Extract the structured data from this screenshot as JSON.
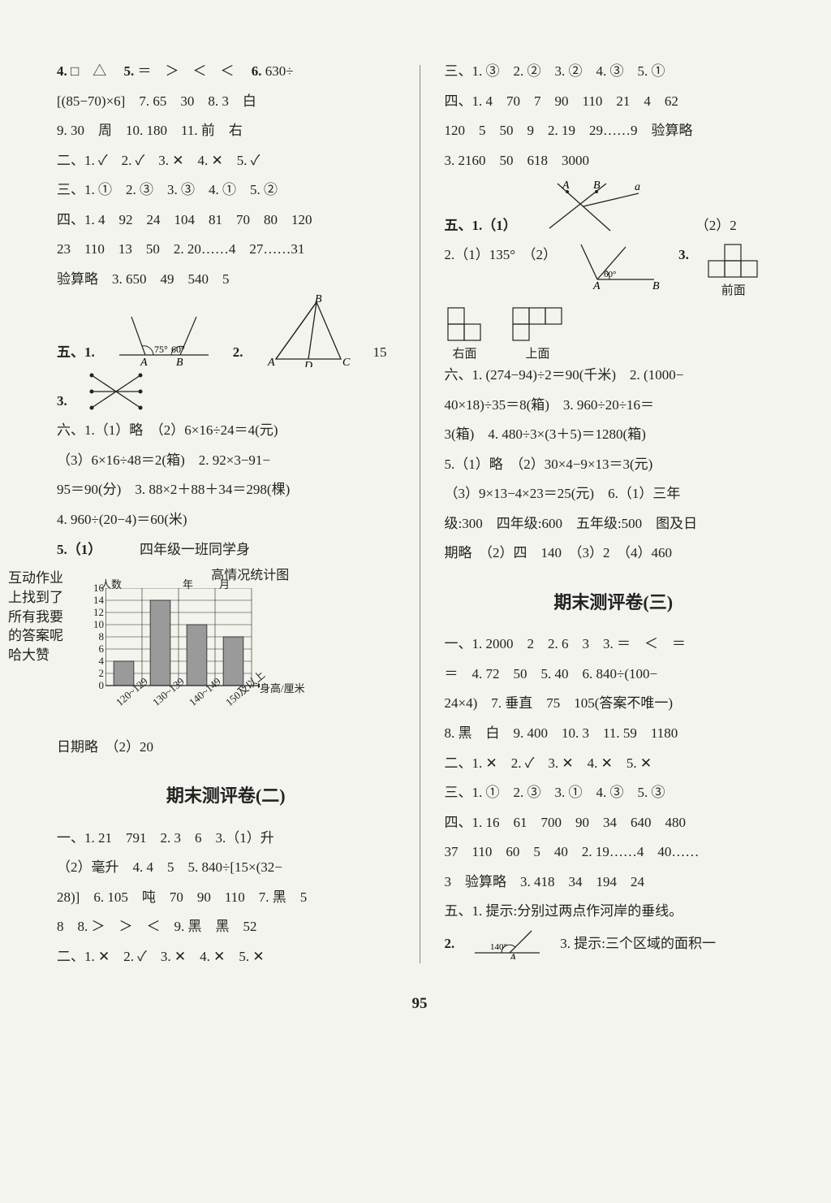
{
  "page_number": "95",
  "left": {
    "l1": {
      "a": "4.",
      "b": "□　△",
      "c": "5.",
      "d": "＝　＞　＜　＜",
      "e": "6.",
      "f": "630÷"
    },
    "l2": "[(85−70)×6]　7. 65　30　8. 3　白",
    "l3": "9. 30　周　10. 180　11. 前　右",
    "l4": "二、1. ✓　2. ✓　3. ✕　4. ✕　5. ✓",
    "l5": "三、1. ①　2. ③　3. ③　4. ①　5. ②",
    "l6": "四、1. 4　92　24　104　81　70　80　120",
    "l7": "23　110　13　50　2. 20……4　27……31",
    "l8": "验算略　3. 650　49　540　5",
    "l9a": "五、1.",
    "l9b": "2.",
    "l9c": "15",
    "fig1": {
      "angle1": "75°",
      "angle2": "60°",
      "labelA": "A",
      "labelB": "B"
    },
    "fig2": {
      "A": "A",
      "B": "B",
      "C": "C",
      "D": "D"
    },
    "l10": "3.",
    "l11": "六、1.（1）略　（2）6×16÷24＝4(元)",
    "l12": "（3）6×16÷48＝2(箱)　2. 92×3−91−",
    "l13": "95＝90(分)　3. 88×2＋88＋34＝298(棵)",
    "l14": "4. 960÷(20−4)＝60(米)",
    "l15a": "5.（1）",
    "l15b": "四年级一班同学身",
    "l15c": "高情况统计图",
    "chart": {
      "ylabel_top": "人数",
      "xlabel_right_top": "年",
      "xlabel_right_top2": "月",
      "xaxis_label": "身高/厘米",
      "yticks": [
        "16",
        "14",
        "12",
        "10",
        "8",
        "6",
        "4",
        "2",
        "0"
      ],
      "categories": [
        "120~129",
        "130~139",
        "140~149",
        "150及以上"
      ],
      "values": [
        4,
        14,
        10,
        8
      ],
      "ymax": 16,
      "bar_color": "#9a9a9a",
      "grid_color": "#222",
      "bg": "#f4f4ee"
    },
    "l16": "日期略　（2）20",
    "heading1": "期末测评卷(二)",
    "l17": "一、1. 21　791　2. 3　6　3.（1）升",
    "l18": "（2）毫升　4. 4　5　5. 840÷[15×(32−",
    "l19": "28)]　6. 105　吨　70　90　110　7. 黑　5",
    "l20": "8　8. ＞　＞　＜　9. 黑　黑　52",
    "l21": "二、1. ✕　2. ✓　3. ✕　4. ✕　5. ✕",
    "annotation": "互动作业上找到了所有我要的答案呢哈大赞"
  },
  "right": {
    "l1": "三、1. ③　2. ②　3. ②　4. ③　5. ①",
    "l2": "四、1. 4　70　7　90　110　21　4　62",
    "l3": "120　5　50　9　2. 19　29……9　验算略",
    "l4": "3. 2160　50　618　3000",
    "l5a": "五、1.（1）",
    "l5b": "（2）2",
    "fig51": {
      "A": "A",
      "B": "B",
      "a": "a"
    },
    "l6a": "2.（1）135°　（2）",
    "l6b": "3.",
    "fig21": {
      "angle": "60°",
      "A": "A",
      "B": "B"
    },
    "fig_front": "前面",
    "fig_right": "右面",
    "fig_top": "上面",
    "l7": "六、1. (274−94)÷2＝90(千米)　2. (1000−",
    "l8": "40×18)÷35＝8(箱)　3. 960÷20÷16＝",
    "l9": "3(箱)　4. 480÷3×(3＋5)＝1280(箱)",
    "l10": "5.（1）略　（2）30×4−9×13＝3(元)",
    "l11": "（3）9×13−4×23＝25(元)　6.（1）三年",
    "l12": "级:300　四年级:600　五年级:500　图及日",
    "l13": "期略　（2）四　140　（3）2　（4）460",
    "heading2": "期末测评卷(三)",
    "l14": "一、1. 2000　2　2. 6　3　3. ＝　＜　＝",
    "l15": "＝　4. 72　50　5. 40　6. 840÷(100−",
    "l16": "24×4)　7. 垂直　75　105(答案不唯一)",
    "l17": "8. 黑　白　9. 400　10. 3　11. 59　1180",
    "l18": "二、1. ✕　2. ✓　3. ✕　4. ✕　5. ✕",
    "l19": "三、1. ①　2. ③　3. ①　4. ③　5. ③",
    "l20": "四、1. 16　61　700　90　34　640　480",
    "l21": "37　110　60　5　40　2. 19……4　40……",
    "l22": "3　验算略　3. 418　34　194　24",
    "l23": "五、1. 提示:分别过两点作河岸的垂线。",
    "l24a": "2.",
    "l24b": "3. 提示:三个区域的面积一",
    "fig_last": {
      "angle": "140°",
      "A": "A"
    }
  }
}
